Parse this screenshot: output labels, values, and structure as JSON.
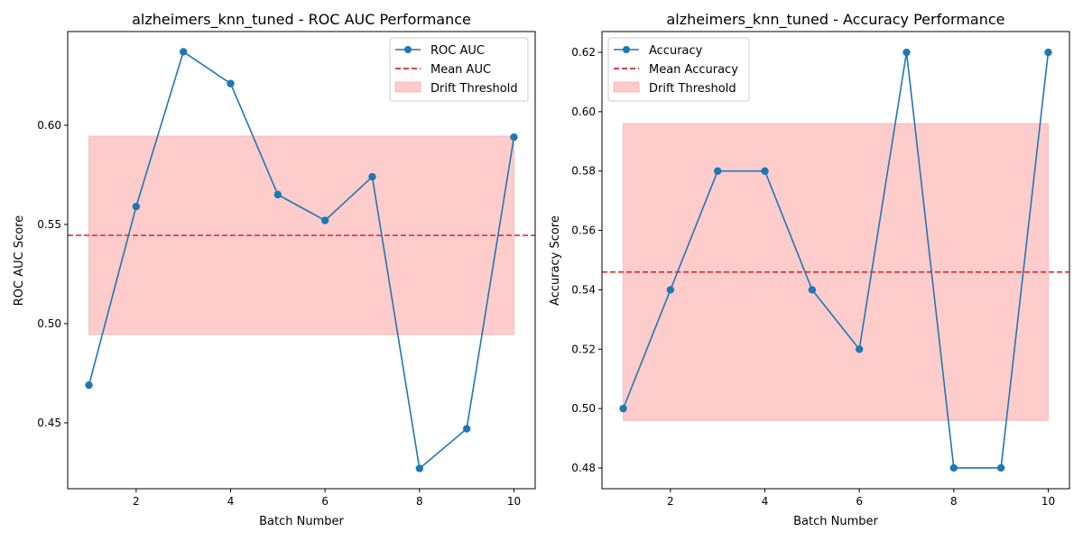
{
  "chart_data": [
    {
      "type": "line",
      "title": "alzheimers_knn_tuned - ROC AUC Performance",
      "xlabel": "Batch Number",
      "ylabel": "ROC AUC Score",
      "xlim": [
        0.55,
        10.45
      ],
      "ylim": [
        0.4168,
        0.6472
      ],
      "xticks": [
        2,
        4,
        6,
        8,
        10
      ],
      "xtick_labels": [
        "2",
        "4",
        "6",
        "8",
        "10"
      ],
      "yticks": [
        0.45,
        0.5,
        0.55,
        0.6
      ],
      "ytick_labels": [
        "0.45",
        "0.50",
        "0.55",
        "0.60"
      ],
      "grid": false,
      "legend_position": "top-right",
      "series": [
        {
          "name": "ROC AUC",
          "color": "#1f77b4",
          "marker": "circle",
          "x": [
            1,
            2,
            3,
            4,
            5,
            6,
            7,
            8,
            9,
            10
          ],
          "y": [
            0.469,
            0.559,
            0.637,
            0.621,
            0.565,
            0.552,
            0.574,
            0.427,
            0.447,
            0.594
          ]
        }
      ],
      "mean_line": {
        "name": "Mean AUC",
        "value": 0.5445,
        "color": "#d62728",
        "style": "dashed"
      },
      "threshold_band": {
        "name": "Drift Threshold",
        "x": [
          1,
          10
        ],
        "y": [
          0.4945,
          0.5945
        ],
        "color": "#ff9999"
      }
    },
    {
      "type": "line",
      "title": "alzheimers_knn_tuned - Accuracy Performance",
      "xlabel": "Batch Number",
      "ylabel": "Accuracy Score",
      "xlim": [
        0.55,
        10.45
      ],
      "ylim": [
        0.473,
        0.627
      ],
      "xticks": [
        2,
        4,
        6,
        8,
        10
      ],
      "xtick_labels": [
        "2",
        "4",
        "6",
        "8",
        "10"
      ],
      "yticks": [
        0.48,
        0.5,
        0.52,
        0.54,
        0.56,
        0.58,
        0.6,
        0.62
      ],
      "ytick_labels": [
        "0.48",
        "0.50",
        "0.52",
        "0.54",
        "0.56",
        "0.58",
        "0.60",
        "0.62"
      ],
      "grid": false,
      "legend_position": "top-left",
      "series": [
        {
          "name": "Accuracy",
          "color": "#1f77b4",
          "marker": "circle",
          "x": [
            1,
            2,
            3,
            4,
            5,
            6,
            7,
            8,
            9,
            10
          ],
          "y": [
            0.5,
            0.54,
            0.58,
            0.58,
            0.54,
            0.52,
            0.62,
            0.48,
            0.48,
            0.62
          ]
        }
      ],
      "mean_line": {
        "name": "Mean Accuracy",
        "value": 0.546,
        "color": "#d62728",
        "style": "dashed"
      },
      "threshold_band": {
        "name": "Drift Threshold",
        "x": [
          1,
          10
        ],
        "y": [
          0.496,
          0.596
        ],
        "color": "#ff9999"
      }
    }
  ]
}
